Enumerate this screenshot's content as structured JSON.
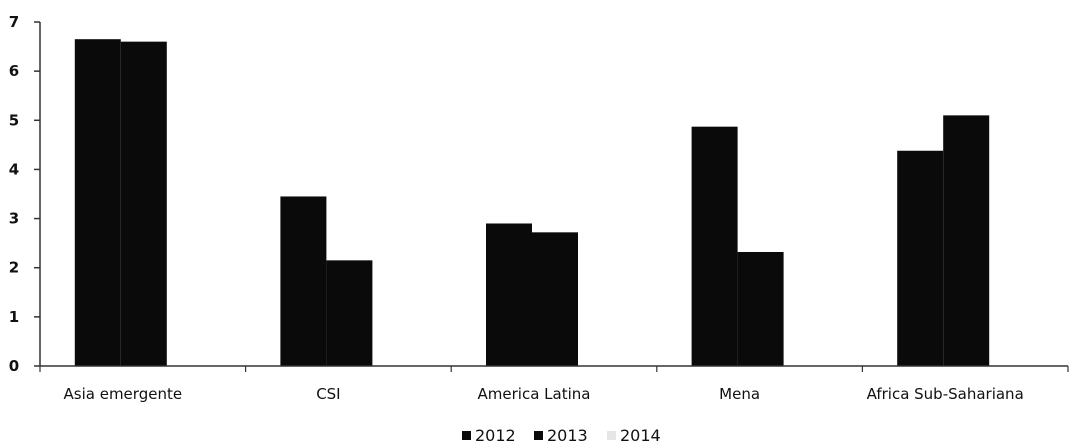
{
  "chart_data": {
    "type": "bar",
    "categories": [
      "Asia emergente",
      "CSI",
      "America Latina",
      "Mena",
      "Africa Sub-Sahariana"
    ],
    "series": [
      {
        "name": "2012",
        "values": [
          6.65,
          3.45,
          2.9,
          4.87,
          4.38
        ]
      },
      {
        "name": "2013",
        "values": [
          6.6,
          2.15,
          2.72,
          2.32,
          5.1
        ]
      },
      {
        "name": "2014",
        "values": [
          null,
          null,
          null,
          null,
          null
        ]
      }
    ],
    "yticks": [
      "0",
      "1",
      "2",
      "3",
      "4",
      "5",
      "6",
      "7"
    ],
    "ylim": [
      0,
      7
    ],
    "grid": false,
    "legend_position": "bottom",
    "colors": {
      "2012": "#0a0a0a",
      "2013": "#0a0a0a",
      "2014": "#e6e6e6",
      "axis": "#333333"
    }
  }
}
